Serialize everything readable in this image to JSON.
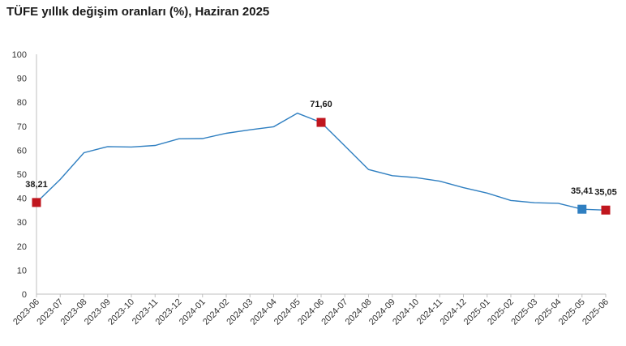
{
  "chart_data": {
    "type": "line",
    "title": "TÜFE yıllık değişim oranları (%), Haziran 2025",
    "xlabel": "",
    "ylabel": "",
    "ylim": [
      0,
      100
    ],
    "yticks": [
      0,
      10,
      20,
      30,
      40,
      50,
      60,
      70,
      80,
      90,
      100
    ],
    "grid": false,
    "categories": [
      "2023-06",
      "2023-07",
      "2023-08",
      "2023-09",
      "2023-10",
      "2023-11",
      "2023-12",
      "2024-01",
      "2024-02",
      "2024-03",
      "2024-04",
      "2024-05",
      "2024-06",
      "2024-07",
      "2024-08",
      "2024-09",
      "2024-10",
      "2024-11",
      "2024-12",
      "2025-01",
      "2025-02",
      "2025-03",
      "2025-04",
      "2025-05",
      "2025-06"
    ],
    "series": [
      {
        "values": [
          38.21,
          47.83,
          58.94,
          61.53,
          61.36,
          61.98,
          64.77,
          64.86,
          67.07,
          68.5,
          69.8,
          75.45,
          71.6,
          61.78,
          51.97,
          49.38,
          48.58,
          47.09,
          44.38,
          42.12,
          39.05,
          38.1,
          37.86,
          35.41,
          35.05
        ],
        "color": "#2f7fc1"
      }
    ],
    "markers": [
      {
        "index": 0,
        "label": "38,21",
        "color": "#c0161e"
      },
      {
        "index": 12,
        "label": "71,60",
        "color": "#c0161e"
      },
      {
        "index": 23,
        "label": "35,41",
        "color": "#2f7fc1"
      },
      {
        "index": 24,
        "label": "35,05",
        "color": "#c0161e"
      }
    ]
  }
}
